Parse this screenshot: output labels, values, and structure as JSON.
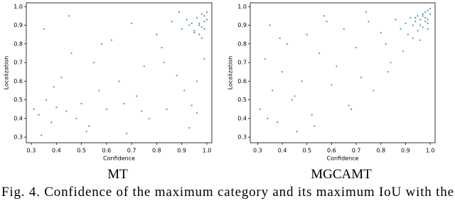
{
  "chart_data": [
    {
      "type": "scatter",
      "title": "MT",
      "x_label": "Confidence",
      "y_label": "Localization",
      "color": "#1f77b4",
      "xlim": [
        0.28,
        1.02
      ],
      "ylim": [
        0.27,
        1.02
      ],
      "xticks": [
        {
          "value": 0.3,
          "label": "0.3"
        },
        {
          "value": 0.4,
          "label": "0.4"
        },
        {
          "value": 0.5,
          "label": "0.5"
        },
        {
          "value": 0.6,
          "label": "0.6"
        },
        {
          "value": 0.7,
          "label": "0.7"
        },
        {
          "value": 0.8,
          "label": "0.8"
        },
        {
          "value": 0.9,
          "label": "0.9"
        },
        {
          "value": 1.0,
          "label": "1.0"
        }
      ],
      "yticks": [
        {
          "value": 0.3,
          "label": "0.3"
        },
        {
          "value": 0.4,
          "label": "0.4"
        },
        {
          "value": 0.5,
          "label": "0.5"
        },
        {
          "value": 0.6,
          "label": "0.6"
        },
        {
          "value": 0.7,
          "label": "0.7"
        },
        {
          "value": 0.8,
          "label": "0.8"
        },
        {
          "value": 0.9,
          "label": "0.9"
        },
        {
          "value": 1.0,
          "label": "1.0"
        }
      ],
      "x": [
        0.31,
        0.33,
        0.35,
        0.36,
        0.38,
        0.4,
        0.42,
        0.44,
        0.46,
        0.48,
        0.5,
        0.52,
        0.55,
        0.57,
        0.6,
        0.62,
        0.65,
        0.67,
        0.7,
        0.72,
        0.75,
        0.77,
        0.8,
        0.82,
        0.84,
        0.86,
        0.88,
        0.9,
        0.91,
        0.92,
        0.93,
        0.94,
        0.95,
        0.96,
        0.97,
        0.97,
        0.98,
        0.98,
        0.99,
        0.99,
        0.99,
        1.0,
        1.0,
        0.99,
        0.98,
        0.97,
        0.96,
        0.95,
        0.94,
        0.93,
        0.34,
        0.39,
        0.45,
        0.53,
        0.58,
        0.68,
        0.74,
        0.83,
        0.89,
        0.96
      ],
      "y": [
        0.45,
        0.42,
        0.88,
        0.5,
        0.38,
        0.46,
        0.62,
        0.44,
        0.75,
        0.4,
        0.48,
        0.33,
        0.7,
        0.55,
        0.45,
        0.82,
        0.6,
        0.48,
        0.91,
        0.52,
        0.68,
        0.4,
        0.85,
        0.78,
        0.45,
        0.92,
        0.63,
        0.88,
        0.55,
        0.93,
        0.9,
        0.47,
        0.87,
        0.94,
        0.91,
        0.85,
        0.96,
        0.89,
        0.92,
        0.95,
        0.88,
        0.97,
        0.93,
        0.72,
        0.83,
        0.9,
        0.6,
        0.86,
        0.91,
        0.35,
        0.31,
        0.57,
        0.95,
        0.36,
        0.8,
        0.32,
        0.44,
        0.7,
        0.97,
        0.43
      ]
    },
    {
      "type": "scatter",
      "title": "MGCAMT",
      "x_label": "Confidence",
      "y_label": "Localization",
      "color": "#1f77b4",
      "xlim": [
        0.27,
        1.02
      ],
      "ylim": [
        0.27,
        1.02
      ],
      "xticks": [
        {
          "value": 0.3,
          "label": "0.3"
        },
        {
          "value": 0.4,
          "label": "0.4"
        },
        {
          "value": 0.5,
          "label": "0.5"
        },
        {
          "value": 0.6,
          "label": "0.6"
        },
        {
          "value": 0.7,
          "label": "0.7"
        },
        {
          "value": 0.8,
          "label": "0.8"
        },
        {
          "value": 0.9,
          "label": "0.9"
        },
        {
          "value": 1.0,
          "label": "1.0"
        }
      ],
      "yticks": [
        {
          "value": 0.3,
          "label": "0.3"
        },
        {
          "value": 0.4,
          "label": "0.4"
        },
        {
          "value": 0.5,
          "label": "0.5"
        },
        {
          "value": 0.6,
          "label": "0.6"
        },
        {
          "value": 0.7,
          "label": "0.7"
        },
        {
          "value": 0.8,
          "label": "0.8"
        },
        {
          "value": 0.9,
          "label": "0.9"
        },
        {
          "value": 1.0,
          "label": "1.0"
        }
      ],
      "x": [
        0.31,
        0.33,
        0.35,
        0.36,
        0.38,
        0.4,
        0.42,
        0.44,
        0.46,
        0.48,
        0.5,
        0.52,
        0.55,
        0.57,
        0.6,
        0.62,
        0.65,
        0.67,
        0.7,
        0.72,
        0.75,
        0.77,
        0.8,
        0.82,
        0.84,
        0.86,
        0.88,
        0.9,
        0.91,
        0.92,
        0.93,
        0.94,
        0.95,
        0.96,
        0.97,
        0.97,
        0.98,
        0.98,
        0.99,
        0.99,
        0.99,
        1.0,
        1.0,
        0.99,
        0.98,
        0.97,
        0.96,
        0.95,
        0.94,
        0.93,
        0.34,
        0.39,
        0.45,
        0.53,
        0.58,
        0.68,
        0.74,
        0.83,
        0.89,
        0.96
      ],
      "y": [
        0.45,
        0.72,
        0.9,
        0.55,
        0.38,
        0.65,
        0.8,
        0.5,
        0.33,
        0.6,
        0.85,
        0.42,
        0.75,
        0.95,
        0.58,
        0.68,
        0.88,
        0.47,
        0.78,
        0.62,
        0.92,
        0.55,
        0.86,
        0.8,
        0.7,
        0.93,
        0.88,
        0.91,
        0.85,
        0.94,
        0.9,
        0.92,
        0.95,
        0.93,
        0.96,
        0.89,
        0.97,
        0.94,
        0.98,
        0.93,
        0.91,
        0.99,
        0.96,
        0.88,
        0.92,
        0.95,
        0.9,
        0.87,
        0.94,
        0.83,
        0.4,
        0.83,
        0.52,
        0.36,
        0.92,
        0.45,
        0.97,
        0.65,
        0.76,
        0.82
      ]
    }
  ],
  "caption": "Fig. 4.  Confidence of the maximum category and its maximum IoU with the"
}
